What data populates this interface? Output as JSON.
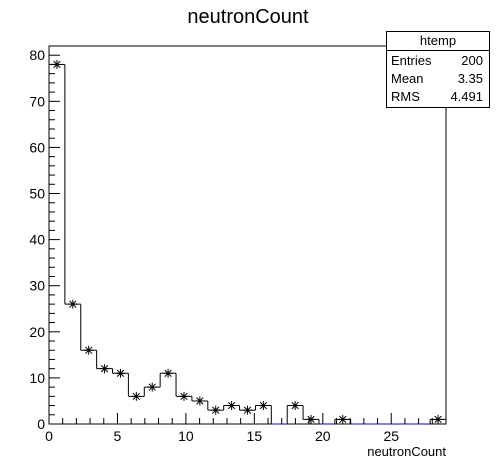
{
  "chart_data": {
    "type": "histogram",
    "title": "neutronCount",
    "xlabel": "neutronCount",
    "ylabel": "",
    "xlim": [
      0,
      29
    ],
    "ylim": [
      0,
      82
    ],
    "bin_width": 1.16,
    "bin_lefts": [
      0.0,
      1.16,
      2.32,
      3.48,
      4.64,
      5.8,
      6.96,
      8.12,
      9.28,
      10.44,
      11.6,
      12.76,
      13.92,
      15.08,
      16.24,
      17.4,
      18.56,
      19.72,
      20.88,
      22.04,
      23.2,
      24.36,
      25.52,
      26.68,
      27.84
    ],
    "counts": [
      78,
      26,
      16,
      12,
      11,
      6,
      8,
      11,
      6,
      5,
      3,
      4,
      3,
      4,
      0,
      4,
      1,
      0,
      1,
      0,
      0,
      0,
      0,
      0,
      1
    ],
    "x_ticks": [
      0,
      5,
      10,
      15,
      20,
      25
    ],
    "y_ticks": [
      0,
      10,
      20,
      30,
      40,
      50,
      60,
      70,
      80
    ],
    "stats": {
      "name": "htemp",
      "rows": [
        {
          "label": "Entries",
          "value": "200"
        },
        {
          "label": "Mean",
          "value": "3.35"
        },
        {
          "label": "RMS",
          "value": "4.491"
        }
      ]
    },
    "line_color": "#0000cc",
    "marker": "asterisk"
  }
}
